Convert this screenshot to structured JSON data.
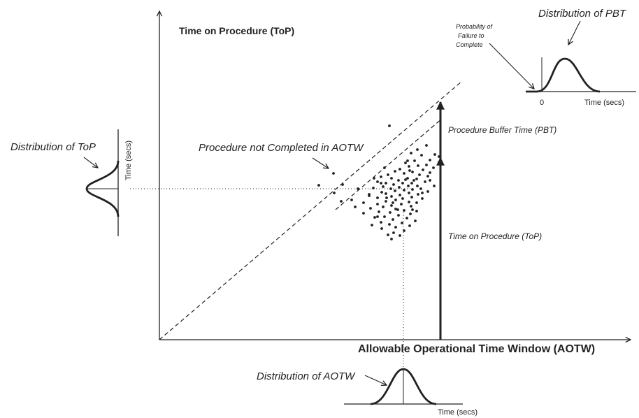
{
  "labels": {
    "title": "Time on Procedure (ToP)",
    "x_axis": "Allowable Operational Time Window (AOTW)",
    "not_completed": "Procedure not Completed in AOTW",
    "pbt_arrow": "Procedure Buffer Time (PBT)",
    "top_arrow": "Time on Procedure (ToP)",
    "dist_top": "Distribution of ToP",
    "dist_aotw": "Distribution of AOTW",
    "dist_pbt": "Distribution of PBT",
    "prob_fail_1": "Probability of",
    "prob_fail_2": "Failure to",
    "prob_fail_3": "Complete",
    "time_secs": "Time (secs)",
    "zero": "0"
  },
  "colors": {
    "ink": "#222222",
    "background": "#ffffff"
  },
  "scatter_points": [
    [
      610,
      208
    ],
    [
      597,
      214
    ],
    [
      622,
      221
    ],
    [
      588,
      219
    ],
    [
      603,
      222
    ],
    [
      615,
      229
    ],
    [
      628,
      224
    ],
    [
      593,
      230
    ],
    [
      580,
      233
    ],
    [
      610,
      236
    ],
    [
      598,
      237
    ],
    [
      620,
      240
    ],
    [
      585,
      238
    ],
    [
      572,
      242
    ],
    [
      605,
      243
    ],
    [
      590,
      246
    ],
    [
      615,
      247
    ],
    [
      565,
      245
    ],
    [
      578,
      248
    ],
    [
      600,
      250
    ],
    [
      555,
      250
    ],
    [
      545,
      253
    ],
    [
      612,
      252
    ],
    [
      560,
      255
    ],
    [
      583,
      255
    ],
    [
      596,
      256
    ],
    [
      570,
      258
    ],
    [
      540,
      260
    ],
    [
      552,
      262
    ],
    [
      608,
      260
    ],
    [
      589,
      262
    ],
    [
      576,
      262
    ],
    [
      563,
      264
    ],
    [
      597,
      266
    ],
    [
      584,
      266
    ],
    [
      548,
      267
    ],
    [
      571,
      268
    ],
    [
      534,
      269
    ],
    [
      559,
      270
    ],
    [
      602,
      270
    ],
    [
      590,
      271
    ],
    [
      578,
      272
    ],
    [
      565,
      273
    ],
    [
      612,
      274
    ],
    [
      546,
      275
    ],
    [
      585,
      276
    ],
    [
      552,
      277
    ],
    [
      598,
      278
    ],
    [
      572,
      279
    ],
    [
      528,
      280
    ],
    [
      560,
      281
    ],
    [
      589,
      282
    ],
    [
      540,
      283
    ],
    [
      576,
      284
    ],
    [
      604,
      284
    ],
    [
      566,
      286
    ],
    [
      552,
      288
    ],
    [
      585,
      289
    ],
    [
      520,
      290
    ],
    [
      596,
      290
    ],
    [
      540,
      292
    ],
    [
      574,
      292
    ],
    [
      560,
      294
    ],
    [
      588,
      295
    ],
    [
      508,
      296
    ],
    [
      548,
      296
    ],
    [
      530,
      298
    ],
    [
      566,
      299
    ],
    [
      578,
      301
    ],
    [
      596,
      302
    ],
    [
      542,
      303
    ],
    [
      558,
      304
    ],
    [
      520,
      305
    ],
    [
      587,
      306
    ],
    [
      570,
      308
    ],
    [
      550,
      310
    ],
    [
      536,
      311
    ],
    [
      582,
      312
    ],
    [
      562,
      314
    ],
    [
      594,
      316
    ],
    [
      545,
      318
    ],
    [
      575,
      319
    ],
    [
      557,
      321
    ],
    [
      532,
      322
    ],
    [
      586,
      323
    ],
    [
      566,
      325
    ],
    [
      546,
      327
    ],
    [
      578,
      330
    ],
    [
      563,
      333
    ],
    [
      555,
      336
    ],
    [
      572,
      337
    ],
    [
      560,
      342
    ],
    [
      586,
      244
    ],
    [
      592,
      258
    ],
    [
      535,
      255
    ],
    [
      628,
      232
    ],
    [
      615,
      258
    ],
    [
      621,
      266
    ],
    [
      583,
      230
    ],
    [
      550,
      240
    ],
    [
      528,
      278
    ],
    [
      512,
      270
    ],
    [
      503,
      286
    ],
    [
      488,
      288
    ],
    [
      478,
      276
    ],
    [
      490,
      264
    ],
    [
      477,
      248
    ],
    [
      456,
      265
    ],
    [
      557,
      180
    ],
    [
      545,
      262
    ],
    [
      562,
      290
    ],
    [
      540,
      310
    ],
    [
      569,
      300
    ],
    [
      580,
      257
    ],
    [
      553,
      283
    ],
    [
      604,
      276
    ],
    [
      590,
      300
    ]
  ]
}
